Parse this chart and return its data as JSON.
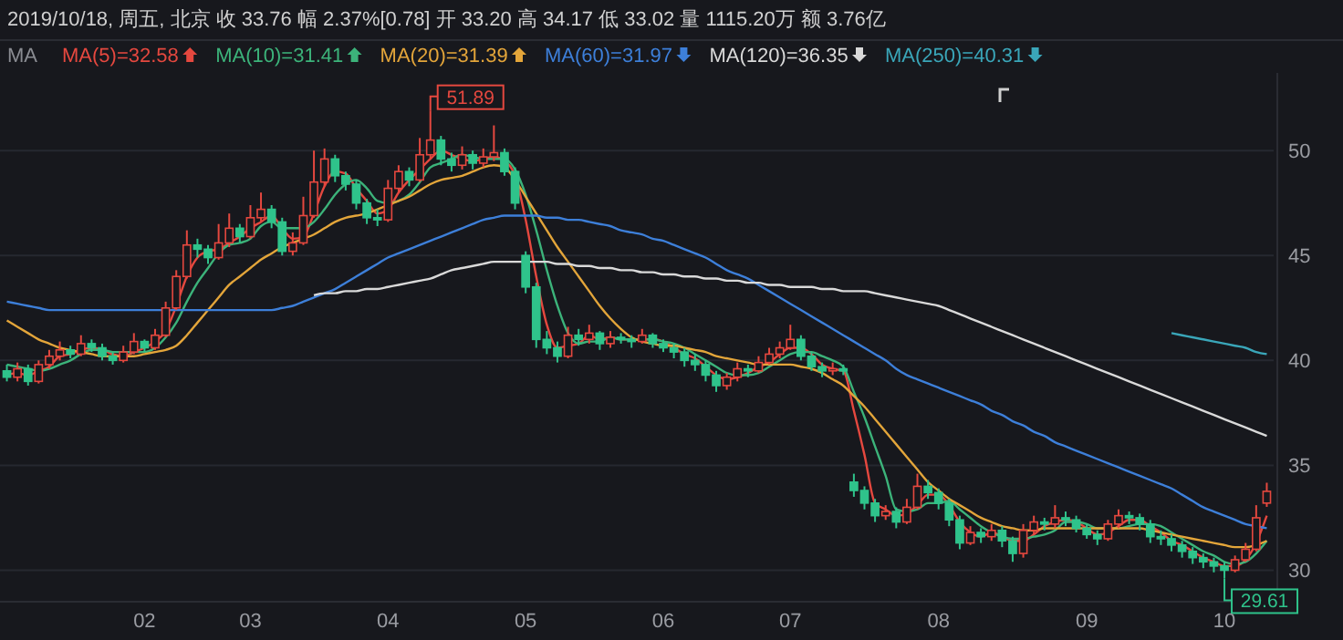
{
  "chart_data": {
    "type": "candlestick",
    "title": "2019/10/18, 周五, 北京  收 33.76  幅 2.37%[0.78]  开 33.20  高 34.17  低 33.02  量 1115.20万  额 3.76亿",
    "legend_title": "MA",
    "legend": "top left",
    "grid": "y",
    "ylim": [
      28.5,
      53.7
    ],
    "yticks": [
      30,
      35,
      40,
      45,
      50
    ],
    "categories": [
      null,
      null,
      null,
      null,
      null,
      null,
      null,
      null,
      null,
      null,
      null,
      null,
      null,
      "02",
      null,
      null,
      null,
      null,
      null,
      null,
      null,
      null,
      null,
      "03",
      null,
      null,
      null,
      null,
      null,
      null,
      null,
      null,
      null,
      null,
      null,
      null,
      "04",
      null,
      null,
      null,
      null,
      null,
      null,
      null,
      null,
      null,
      null,
      null,
      null,
      "05",
      null,
      null,
      null,
      null,
      null,
      null,
      null,
      null,
      null,
      null,
      null,
      null,
      "06",
      null,
      null,
      null,
      null,
      null,
      null,
      null,
      null,
      null,
      null,
      null,
      "07",
      null,
      null,
      null,
      null,
      null,
      null,
      null,
      null,
      null,
      null,
      null,
      null,
      null,
      "08",
      null,
      null,
      null,
      null,
      null,
      null,
      null,
      null,
      null,
      null,
      null,
      null,
      null,
      "09",
      null,
      null,
      null,
      null,
      null,
      null,
      null,
      null,
      null,
      null,
      null,
      null,
      "10",
      null,
      null,
      null,
      null
    ],
    "ohlc": [
      [
        39.5,
        39.8,
        39.0,
        39.2
      ],
      [
        39.2,
        39.9,
        39.0,
        39.6
      ],
      [
        39.6,
        39.8,
        38.8,
        39.0
      ],
      [
        39.0,
        40.0,
        38.9,
        39.8
      ],
      [
        39.8,
        40.5,
        39.6,
        40.2
      ],
      [
        40.2,
        40.9,
        40.0,
        40.5
      ],
      [
        40.5,
        40.7,
        40.1,
        40.3
      ],
      [
        40.3,
        41.2,
        40.2,
        40.8
      ],
      [
        40.8,
        41.0,
        40.4,
        40.6
      ],
      [
        40.6,
        40.8,
        40.0,
        40.2
      ],
      [
        40.2,
        40.4,
        39.8,
        40.0
      ],
      [
        40.0,
        40.7,
        39.9,
        40.4
      ],
      [
        40.4,
        41.3,
        40.3,
        40.9
      ],
      [
        40.9,
        41.0,
        40.4,
        40.6
      ],
      [
        40.6,
        41.5,
        40.5,
        41.2
      ],
      [
        41.2,
        42.8,
        41.1,
        42.5
      ],
      [
        42.5,
        44.3,
        42.4,
        44.0
      ],
      [
        44.0,
        46.2,
        43.9,
        45.5
      ],
      [
        45.5,
        45.8,
        44.9,
        45.3
      ],
      [
        45.3,
        45.5,
        44.6,
        44.9
      ],
      [
        44.9,
        46.5,
        44.8,
        45.6
      ],
      [
        45.6,
        47.0,
        45.4,
        46.3
      ],
      [
        46.3,
        46.5,
        45.6,
        45.9
      ],
      [
        45.9,
        47.4,
        45.8,
        46.8
      ],
      [
        46.8,
        48.0,
        46.6,
        47.2
      ],
      [
        47.2,
        47.4,
        46.3,
        46.6
      ],
      [
        46.6,
        46.8,
        45.0,
        45.2
      ],
      [
        45.2,
        46.1,
        45.0,
        45.6
      ],
      [
        45.6,
        47.8,
        45.5,
        46.9
      ],
      [
        46.9,
        50.0,
        46.8,
        48.5
      ],
      [
        48.5,
        50.1,
        48.3,
        49.6
      ],
      [
        49.6,
        49.8,
        48.5,
        48.8
      ],
      [
        48.8,
        49.0,
        48.1,
        48.4
      ],
      [
        48.4,
        48.6,
        47.2,
        47.5
      ],
      [
        47.5,
        47.7,
        46.5,
        46.8
      ],
      [
        46.8,
        47.2,
        46.4,
        46.7
      ],
      [
        46.7,
        48.6,
        46.6,
        48.2
      ],
      [
        48.2,
        49.3,
        48.0,
        49.0
      ],
      [
        49.0,
        49.2,
        48.3,
        48.6
      ],
      [
        48.6,
        50.6,
        48.5,
        49.8
      ],
      [
        49.8,
        51.89,
        49.6,
        50.5
      ],
      [
        50.5,
        50.7,
        49.3,
        49.6
      ],
      [
        49.6,
        49.9,
        49.0,
        49.3
      ],
      [
        49.3,
        50.2,
        49.1,
        49.8
      ],
      [
        49.8,
        50.0,
        49.1,
        49.4
      ],
      [
        49.4,
        50.1,
        49.2,
        49.7
      ],
      [
        49.7,
        51.2,
        49.5,
        49.9
      ],
      [
        49.9,
        50.1,
        48.8,
        49.0
      ],
      [
        49.0,
        49.2,
        47.2,
        47.5
      ],
      [
        45.0,
        45.2,
        43.2,
        43.5
      ],
      [
        43.5,
        43.7,
        40.6,
        41.0
      ],
      [
        41.0,
        41.4,
        40.3,
        40.6
      ],
      [
        40.6,
        40.9,
        39.9,
        40.2
      ],
      [
        40.2,
        41.6,
        40.1,
        41.2
      ],
      [
        41.2,
        41.5,
        40.7,
        41.0
      ],
      [
        41.0,
        41.7,
        40.8,
        41.3
      ],
      [
        41.3,
        41.4,
        40.5,
        40.8
      ],
      [
        40.8,
        41.4,
        40.6,
        41.1
      ],
      [
        41.1,
        41.3,
        40.8,
        41.0
      ],
      [
        41.0,
        41.2,
        40.6,
        40.9
      ],
      [
        40.9,
        41.5,
        40.8,
        41.2
      ],
      [
        41.2,
        41.3,
        40.6,
        40.8
      ],
      [
        40.8,
        41.0,
        40.4,
        40.6
      ],
      [
        40.6,
        40.8,
        40.1,
        40.4
      ],
      [
        40.4,
        40.6,
        39.7,
        40.0
      ],
      [
        40.0,
        40.3,
        39.5,
        39.8
      ],
      [
        39.8,
        40.0,
        39.0,
        39.3
      ],
      [
        39.3,
        39.5,
        38.5,
        38.8
      ],
      [
        38.8,
        39.4,
        38.6,
        39.2
      ],
      [
        39.2,
        39.9,
        39.0,
        39.6
      ],
      [
        39.6,
        39.8,
        39.2,
        39.5
      ],
      [
        39.5,
        40.2,
        39.4,
        39.9
      ],
      [
        39.9,
        40.6,
        39.8,
        40.3
      ],
      [
        40.3,
        40.9,
        40.1,
        40.6
      ],
      [
        40.6,
        41.7,
        40.5,
        41.0
      ],
      [
        41.0,
        41.2,
        40.0,
        40.2
      ],
      [
        40.2,
        40.4,
        39.5,
        39.7
      ],
      [
        39.7,
        39.9,
        39.2,
        39.5
      ],
      [
        39.5,
        39.9,
        39.3,
        39.6
      ],
      [
        39.6,
        39.8,
        39.3,
        39.5
      ],
      [
        34.2,
        34.6,
        33.5,
        33.8
      ],
      [
        33.8,
        34.0,
        32.9,
        33.2
      ],
      [
        33.2,
        33.4,
        32.3,
        32.6
      ],
      [
        32.6,
        33.1,
        32.4,
        32.8
      ],
      [
        32.8,
        33.0,
        32.0,
        32.3
      ],
      [
        32.3,
        33.4,
        32.2,
        33.0
      ],
      [
        33.0,
        34.6,
        32.9,
        34.0
      ],
      [
        34.0,
        34.3,
        33.4,
        33.7
      ],
      [
        33.7,
        33.9,
        32.9,
        33.2
      ],
      [
        33.2,
        33.4,
        32.1,
        32.4
      ],
      [
        32.4,
        32.6,
        31.0,
        31.3
      ],
      [
        31.3,
        32.1,
        31.2,
        31.8
      ],
      [
        31.8,
        32.0,
        31.3,
        31.6
      ],
      [
        31.6,
        32.2,
        31.4,
        31.9
      ],
      [
        31.9,
        32.1,
        31.1,
        31.4
      ],
      [
        31.4,
        31.6,
        30.4,
        30.8
      ],
      [
        30.8,
        32.2,
        30.6,
        31.9
      ],
      [
        31.9,
        32.6,
        31.7,
        32.3
      ],
      [
        32.3,
        32.5,
        31.9,
        32.2
      ],
      [
        32.2,
        33.1,
        32.0,
        32.5
      ],
      [
        32.5,
        32.8,
        32.1,
        32.4
      ],
      [
        32.4,
        32.6,
        31.8,
        32.0
      ],
      [
        32.0,
        32.2,
        31.5,
        31.7
      ],
      [
        31.7,
        31.9,
        31.2,
        31.5
      ],
      [
        31.5,
        32.4,
        31.4,
        32.2
      ],
      [
        32.2,
        32.9,
        32.0,
        32.6
      ],
      [
        32.6,
        32.8,
        32.2,
        32.5
      ],
      [
        32.5,
        32.7,
        31.9,
        32.2
      ],
      [
        32.2,
        32.4,
        31.3,
        31.6
      ],
      [
        31.6,
        31.9,
        31.2,
        31.5
      ],
      [
        31.5,
        31.7,
        30.9,
        31.2
      ],
      [
        31.2,
        31.4,
        30.6,
        30.9
      ],
      [
        30.9,
        31.1,
        30.3,
        30.6
      ],
      [
        30.6,
        30.8,
        30.1,
        30.4
      ],
      [
        30.4,
        30.6,
        29.9,
        30.2
      ],
      [
        30.2,
        30.4,
        29.61,
        30.0
      ],
      [
        30.0,
        30.7,
        29.9,
        30.5
      ],
      [
        30.5,
        31.3,
        30.4,
        31.0
      ],
      [
        31.0,
        33.1,
        30.9,
        32.5
      ],
      [
        33.2,
        34.17,
        33.02,
        33.76
      ]
    ],
    "series": [
      {
        "type": "line",
        "name": "MA(5)=32.58",
        "color": "#e5483f",
        "values": [
          39.3,
          39.4,
          39.3,
          39.5,
          39.7,
          40.2,
          40.3,
          40.5,
          40.6,
          40.5,
          40.3,
          40.2,
          40.4,
          40.6,
          40.9,
          41.4,
          42.6,
          44.0,
          44.9,
          45.2,
          45.3,
          45.6,
          45.9,
          46.3,
          46.6,
          46.9,
          46.3,
          45.8,
          45.9,
          47.0,
          48.3,
          49.0,
          48.9,
          48.2,
          47.6,
          47.0,
          47.2,
          48.0,
          48.6,
          49.1,
          49.6,
          50.0,
          49.8,
          49.6,
          49.5,
          49.6,
          49.7,
          49.5,
          48.8,
          46.7,
          44.0,
          41.7,
          40.6,
          40.7,
          40.8,
          41.2,
          41.0,
          41.1,
          41.0,
          41.0,
          41.0,
          41.0,
          40.9,
          40.6,
          40.3,
          40.1,
          39.7,
          39.3,
          39.1,
          39.2,
          39.4,
          39.7,
          39.9,
          40.3,
          40.6,
          40.6,
          40.3,
          39.8,
          39.6,
          39.5,
          37.6,
          35.5,
          33.2,
          32.9,
          32.6,
          32.7,
          33.1,
          33.6,
          33.6,
          33.1,
          32.3,
          31.8,
          31.6,
          31.8,
          31.6,
          31.4,
          31.4,
          31.7,
          32.1,
          32.3,
          32.4,
          32.3,
          32.0,
          31.7,
          31.8,
          32.1,
          32.4,
          32.4,
          32.1,
          31.8,
          31.4,
          31.2,
          30.9,
          30.6,
          30.4,
          30.2,
          30.2,
          30.5,
          31.3,
          32.6
        ]
      },
      {
        "type": "line",
        "name": "MA(10)=31.41",
        "color": "#3cb37a",
        "values": [
          39.8,
          39.7,
          39.6,
          39.5,
          39.6,
          39.8,
          40.0,
          40.3,
          40.5,
          40.5,
          40.4,
          40.4,
          40.4,
          40.4,
          40.6,
          41.1,
          41.8,
          42.8,
          43.7,
          44.4,
          45.1,
          45.5,
          45.6,
          45.8,
          46.4,
          46.6,
          46.3,
          46.3,
          46.3,
          46.6,
          47.2,
          47.9,
          48.4,
          48.6,
          48.2,
          47.6,
          47.5,
          47.6,
          47.9,
          48.5,
          49.2,
          49.4,
          49.6,
          49.8,
          49.7,
          49.6,
          49.6,
          49.6,
          49.1,
          47.9,
          46.2,
          44.3,
          42.6,
          41.3,
          40.8,
          40.9,
          40.9,
          41.1,
          41.0,
          41.0,
          41.0,
          41.0,
          40.9,
          40.8,
          40.6,
          40.3,
          40.0,
          39.7,
          39.4,
          39.3,
          39.3,
          39.4,
          39.7,
          40.0,
          40.3,
          40.4,
          40.4,
          40.2,
          40.0,
          39.7,
          38.5,
          37.3,
          35.9,
          34.5,
          32.9,
          32.8,
          32.9,
          33.2,
          33.2,
          33.3,
          32.9,
          32.5,
          32.1,
          31.8,
          31.6,
          31.5,
          31.5,
          31.6,
          31.7,
          31.9,
          32.3,
          32.3,
          32.2,
          32.0,
          32.0,
          32.0,
          32.1,
          32.2,
          32.2,
          32.1,
          31.8,
          31.5,
          31.2,
          30.9,
          30.7,
          30.4,
          30.3,
          30.4,
          30.8,
          31.4
        ]
      },
      {
        "type": "line",
        "name": "MA(20)=31.39",
        "color": "#e3a53a",
        "values": [
          41.9,
          41.6,
          41.3,
          41.0,
          40.8,
          40.6,
          40.5,
          40.4,
          40.3,
          40.2,
          40.2,
          40.2,
          40.2,
          40.3,
          40.4,
          40.5,
          40.7,
          41.2,
          41.8,
          42.4,
          43.0,
          43.6,
          44.0,
          44.4,
          44.8,
          45.1,
          45.4,
          45.6,
          45.8,
          46.0,
          46.3,
          46.6,
          46.8,
          46.9,
          47.0,
          47.2,
          47.4,
          47.6,
          47.8,
          48.1,
          48.4,
          48.6,
          48.7,
          48.8,
          49.0,
          49.2,
          49.3,
          49.2,
          48.6,
          47.8,
          47.0,
          46.2,
          45.4,
          44.7,
          44.0,
          43.3,
          42.6,
          42.0,
          41.5,
          41.1,
          40.9,
          40.8,
          40.7,
          40.7,
          40.6,
          40.5,
          40.4,
          40.2,
          40.1,
          40.0,
          39.9,
          39.8,
          39.8,
          39.8,
          39.8,
          39.7,
          39.6,
          39.4,
          39.1,
          38.8,
          38.3,
          37.8,
          37.2,
          36.6,
          36.0,
          35.4,
          34.8,
          34.2,
          33.8,
          33.4,
          33.1,
          32.8,
          32.5,
          32.3,
          32.1,
          32.0,
          31.9,
          31.9,
          32.0,
          32.0,
          32.0,
          32.0,
          32.0,
          32.0,
          32.0,
          32.0,
          32.0,
          32.0,
          31.9,
          31.8,
          31.7,
          31.6,
          31.5,
          31.4,
          31.3,
          31.2,
          31.1,
          31.1,
          31.2,
          31.4
        ]
      },
      {
        "type": "line",
        "name": "MA(60)=31.97",
        "color": "#3d7fd9",
        "values": [
          42.8,
          42.7,
          42.6,
          42.5,
          42.4,
          42.4,
          42.4,
          42.4,
          42.4,
          42.4,
          42.4,
          42.4,
          42.4,
          42.4,
          42.4,
          42.4,
          42.4,
          42.4,
          42.4,
          42.4,
          42.4,
          42.4,
          42.4,
          42.4,
          42.4,
          42.4,
          42.5,
          42.6,
          42.8,
          43.0,
          43.2,
          43.4,
          43.7,
          44.0,
          44.3,
          44.6,
          44.9,
          45.1,
          45.3,
          45.5,
          45.7,
          45.9,
          46.1,
          46.3,
          46.5,
          46.7,
          46.8,
          46.9,
          46.9,
          46.9,
          46.9,
          46.8,
          46.8,
          46.7,
          46.7,
          46.6,
          46.5,
          46.4,
          46.2,
          46.1,
          46.0,
          45.8,
          45.7,
          45.5,
          45.3,
          45.1,
          44.9,
          44.6,
          44.3,
          44.1,
          43.9,
          43.6,
          43.3,
          43.0,
          42.7,
          42.4,
          42.1,
          41.8,
          41.5,
          41.2,
          40.9,
          40.6,
          40.3,
          40.0,
          39.6,
          39.3,
          39.1,
          38.9,
          38.7,
          38.5,
          38.3,
          38.1,
          37.9,
          37.6,
          37.4,
          37.1,
          36.9,
          36.6,
          36.4,
          36.1,
          35.9,
          35.7,
          35.5,
          35.3,
          35.1,
          34.9,
          34.7,
          34.5,
          34.3,
          34.1,
          33.9,
          33.6,
          33.3,
          33.0,
          32.8,
          32.6,
          32.4,
          32.2,
          32.1,
          32.0
        ]
      },
      {
        "type": "line",
        "name": "MA(120)=36.35",
        "color": "#d9d9d9",
        "values": [
          null,
          null,
          null,
          null,
          null,
          null,
          null,
          null,
          null,
          null,
          null,
          null,
          null,
          null,
          null,
          null,
          null,
          null,
          null,
          null,
          null,
          null,
          null,
          null,
          null,
          null,
          null,
          null,
          null,
          43.1,
          43.2,
          43.2,
          43.3,
          43.3,
          43.4,
          43.4,
          43.5,
          43.6,
          43.7,
          43.8,
          43.9,
          44.1,
          44.3,
          44.4,
          44.5,
          44.6,
          44.7,
          44.7,
          44.7,
          44.7,
          44.7,
          44.7,
          44.6,
          44.6,
          44.5,
          44.5,
          44.4,
          44.4,
          44.3,
          44.3,
          44.2,
          44.2,
          44.1,
          44.1,
          44.0,
          44.0,
          43.9,
          43.9,
          43.8,
          43.8,
          43.7,
          43.7,
          43.6,
          43.6,
          43.5,
          43.5,
          43.5,
          43.4,
          43.4,
          43.3,
          43.3,
          43.3,
          43.2,
          43.1,
          43.0,
          42.9,
          42.8,
          42.7,
          42.6,
          42.4,
          42.2,
          42.0,
          41.8,
          41.6,
          41.4,
          41.2,
          41.0,
          40.8,
          40.6,
          40.4,
          40.2,
          40.0,
          39.8,
          39.6,
          39.4,
          39.2,
          39.0,
          38.8,
          38.6,
          38.4,
          38.2,
          38.0,
          37.8,
          37.6,
          37.4,
          37.2,
          37.0,
          36.8,
          36.6,
          36.4
        ]
      },
      {
        "type": "line",
        "name": "MA(250)=40.31",
        "color": "#3aa6b9",
        "values": [
          null,
          null,
          null,
          null,
          null,
          null,
          null,
          null,
          null,
          null,
          null,
          null,
          null,
          null,
          null,
          null,
          null,
          null,
          null,
          null,
          null,
          null,
          null,
          null,
          null,
          null,
          null,
          null,
          null,
          null,
          null,
          null,
          null,
          null,
          null,
          null,
          null,
          null,
          null,
          null,
          null,
          null,
          null,
          null,
          null,
          null,
          null,
          null,
          null,
          null,
          null,
          null,
          null,
          null,
          null,
          null,
          null,
          null,
          null,
          null,
          null,
          null,
          null,
          null,
          null,
          null,
          null,
          null,
          null,
          null,
          null,
          null,
          null,
          null,
          null,
          null,
          null,
          null,
          null,
          null,
          null,
          null,
          null,
          null,
          null,
          null,
          null,
          null,
          null,
          null,
          null,
          null,
          null,
          null,
          null,
          null,
          null,
          null,
          null,
          null,
          null,
          null,
          null,
          null,
          null,
          null,
          null,
          null,
          null,
          null,
          41.3,
          41.2,
          41.1,
          41.0,
          40.9,
          40.8,
          40.7,
          40.6,
          40.4,
          40.3
        ]
      }
    ],
    "annotations": [
      "51.89",
      "29.61"
    ]
  }
}
